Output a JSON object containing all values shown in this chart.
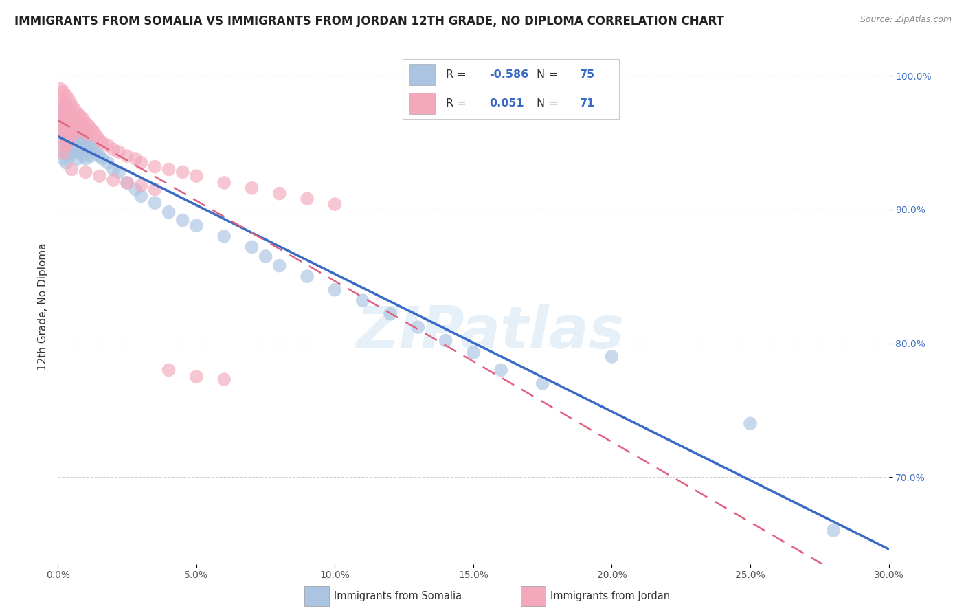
{
  "title": "IMMIGRANTS FROM SOMALIA VS IMMIGRANTS FROM JORDAN 12TH GRADE, NO DIPLOMA CORRELATION CHART",
  "source": "Source: ZipAtlas.com",
  "xlabel_somalia": "Immigrants from Somalia",
  "xlabel_jordan": "Immigrants from Jordan",
  "ylabel": "12th Grade, No Diploma",
  "xlim": [
    0.0,
    0.3
  ],
  "ylim": [
    0.635,
    1.02
  ],
  "xticks": [
    0.0,
    0.05,
    0.1,
    0.15,
    0.2,
    0.25,
    0.3
  ],
  "xticklabels": [
    "0.0%",
    "5.0%",
    "10.0%",
    "15.0%",
    "20.0%",
    "25.0%",
    "30.0%"
  ],
  "yticks": [
    0.7,
    0.8,
    0.9,
    1.0
  ],
  "yticklabels": [
    "70.0%",
    "80.0%",
    "90.0%",
    "100.0%"
  ],
  "somalia_color": "#aac4e2",
  "jordan_color": "#f4a8bc",
  "somalia_R": -0.586,
  "somalia_N": 75,
  "jordan_R": 0.051,
  "jordan_N": 71,
  "somalia_line_color": "#3a6bc4",
  "jordan_line_color": "#e06080",
  "somalia_scatter": [
    [
      0.001,
      0.975
    ],
    [
      0.001,
      0.968
    ],
    [
      0.001,
      0.962
    ],
    [
      0.001,
      0.955
    ],
    [
      0.002,
      0.972
    ],
    [
      0.002,
      0.965
    ],
    [
      0.002,
      0.958
    ],
    [
      0.002,
      0.952
    ],
    [
      0.002,
      0.945
    ],
    [
      0.002,
      0.938
    ],
    [
      0.003,
      0.97
    ],
    [
      0.003,
      0.963
    ],
    [
      0.003,
      0.956
    ],
    [
      0.003,
      0.948
    ],
    [
      0.003,
      0.942
    ],
    [
      0.003,
      0.935
    ],
    [
      0.004,
      0.968
    ],
    [
      0.004,
      0.961
    ],
    [
      0.004,
      0.954
    ],
    [
      0.004,
      0.948
    ],
    [
      0.004,
      0.94
    ],
    [
      0.005,
      0.965
    ],
    [
      0.005,
      0.958
    ],
    [
      0.005,
      0.95
    ],
    [
      0.005,
      0.943
    ],
    [
      0.006,
      0.963
    ],
    [
      0.006,
      0.955
    ],
    [
      0.006,
      0.948
    ],
    [
      0.007,
      0.96
    ],
    [
      0.007,
      0.952
    ],
    [
      0.007,
      0.945
    ],
    [
      0.007,
      0.938
    ],
    [
      0.008,
      0.958
    ],
    [
      0.008,
      0.95
    ],
    [
      0.008,
      0.942
    ],
    [
      0.009,
      0.955
    ],
    [
      0.009,
      0.948
    ],
    [
      0.009,
      0.94
    ],
    [
      0.01,
      0.952
    ],
    [
      0.01,
      0.945
    ],
    [
      0.01,
      0.938
    ],
    [
      0.011,
      0.95
    ],
    [
      0.011,
      0.943
    ],
    [
      0.012,
      0.948
    ],
    [
      0.012,
      0.94
    ],
    [
      0.013,
      0.945
    ],
    [
      0.014,
      0.942
    ],
    [
      0.015,
      0.94
    ],
    [
      0.016,
      0.938
    ],
    [
      0.018,
      0.935
    ],
    [
      0.02,
      0.93
    ],
    [
      0.022,
      0.928
    ],
    [
      0.025,
      0.92
    ],
    [
      0.028,
      0.915
    ],
    [
      0.03,
      0.91
    ],
    [
      0.035,
      0.905
    ],
    [
      0.04,
      0.898
    ],
    [
      0.045,
      0.892
    ],
    [
      0.05,
      0.888
    ],
    [
      0.06,
      0.88
    ],
    [
      0.07,
      0.872
    ],
    [
      0.075,
      0.865
    ],
    [
      0.08,
      0.858
    ],
    [
      0.09,
      0.85
    ],
    [
      0.1,
      0.84
    ],
    [
      0.11,
      0.832
    ],
    [
      0.12,
      0.822
    ],
    [
      0.13,
      0.812
    ],
    [
      0.14,
      0.802
    ],
    [
      0.15,
      0.793
    ],
    [
      0.16,
      0.78
    ],
    [
      0.175,
      0.77
    ],
    [
      0.2,
      0.79
    ],
    [
      0.25,
      0.74
    ],
    [
      0.28,
      0.66
    ]
  ],
  "jordan_scatter": [
    [
      0.001,
      0.99
    ],
    [
      0.001,
      0.982
    ],
    [
      0.001,
      0.975
    ],
    [
      0.001,
      0.968
    ],
    [
      0.001,
      0.96
    ],
    [
      0.002,
      0.988
    ],
    [
      0.002,
      0.98
    ],
    [
      0.002,
      0.972
    ],
    [
      0.002,
      0.965
    ],
    [
      0.002,
      0.958
    ],
    [
      0.002,
      0.95
    ],
    [
      0.002,
      0.942
    ],
    [
      0.003,
      0.985
    ],
    [
      0.003,
      0.978
    ],
    [
      0.003,
      0.97
    ],
    [
      0.003,
      0.962
    ],
    [
      0.003,
      0.955
    ],
    [
      0.003,
      0.948
    ],
    [
      0.004,
      0.982
    ],
    [
      0.004,
      0.975
    ],
    [
      0.004,
      0.967
    ],
    [
      0.004,
      0.96
    ],
    [
      0.004,
      0.952
    ],
    [
      0.005,
      0.978
    ],
    [
      0.005,
      0.97
    ],
    [
      0.005,
      0.963
    ],
    [
      0.005,
      0.956
    ],
    [
      0.006,
      0.975
    ],
    [
      0.006,
      0.968
    ],
    [
      0.006,
      0.96
    ],
    [
      0.007,
      0.972
    ],
    [
      0.007,
      0.965
    ],
    [
      0.007,
      0.958
    ],
    [
      0.008,
      0.97
    ],
    [
      0.008,
      0.963
    ],
    [
      0.009,
      0.968
    ],
    [
      0.009,
      0.96
    ],
    [
      0.01,
      0.965
    ],
    [
      0.01,
      0.958
    ],
    [
      0.011,
      0.963
    ],
    [
      0.011,
      0.956
    ],
    [
      0.012,
      0.96
    ],
    [
      0.013,
      0.958
    ],
    [
      0.014,
      0.955
    ],
    [
      0.015,
      0.952
    ],
    [
      0.016,
      0.95
    ],
    [
      0.018,
      0.948
    ],
    [
      0.02,
      0.945
    ],
    [
      0.022,
      0.943
    ],
    [
      0.025,
      0.94
    ],
    [
      0.028,
      0.938
    ],
    [
      0.03,
      0.935
    ],
    [
      0.035,
      0.932
    ],
    [
      0.04,
      0.93
    ],
    [
      0.045,
      0.928
    ],
    [
      0.05,
      0.925
    ],
    [
      0.06,
      0.92
    ],
    [
      0.07,
      0.916
    ],
    [
      0.08,
      0.912
    ],
    [
      0.09,
      0.908
    ],
    [
      0.1,
      0.904
    ],
    [
      0.04,
      0.78
    ],
    [
      0.05,
      0.775
    ],
    [
      0.06,
      0.773
    ],
    [
      0.005,
      0.93
    ],
    [
      0.01,
      0.928
    ],
    [
      0.015,
      0.925
    ],
    [
      0.02,
      0.922
    ],
    [
      0.025,
      0.92
    ],
    [
      0.03,
      0.918
    ],
    [
      0.035,
      0.915
    ]
  ],
  "watermark": "ZIPatlas",
  "background_color": "#ffffff",
  "grid_color": "#c8c8c8",
  "title_fontsize": 12,
  "axis_fontsize": 10
}
